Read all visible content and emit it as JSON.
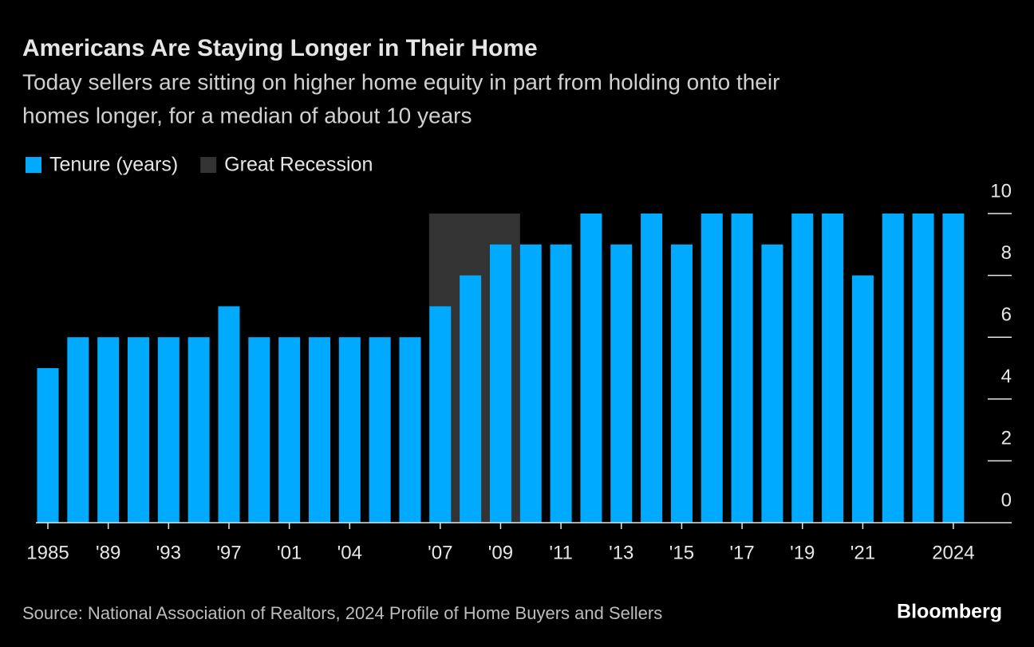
{
  "chart_data": {
    "type": "bar",
    "title": "Americans Are Staying Longer in Their Home",
    "subtitle": [
      "Today sellers are sitting on higher home equity in part from holding onto their",
      "homes longer, for a median of about 10 years"
    ],
    "categories": [
      "1985",
      null,
      "'89",
      null,
      "'93",
      null,
      "'97",
      null,
      "'01",
      null,
      "'04",
      null,
      null,
      "'07",
      null,
      "'09",
      null,
      "'11",
      null,
      "'13",
      null,
      "'15",
      null,
      "'17",
      null,
      "'19",
      null,
      "'21",
      null,
      null,
      "2024"
    ],
    "series": [
      {
        "name": "Tenure (years)",
        "color": "#00aaff",
        "values": [
          5,
          6,
          6,
          6,
          6,
          6,
          7,
          6,
          6,
          6,
          6,
          6,
          6,
          7,
          8,
          9,
          9,
          9,
          10,
          9,
          10,
          9,
          10,
          10,
          9,
          10,
          10,
          8,
          10,
          10,
          10
        ]
      },
      {
        "name": "Great Recession",
        "color": "#333333",
        "band": true,
        "values": [
          null,
          null,
          null,
          null,
          null,
          null,
          null,
          null,
          null,
          null,
          null,
          null,
          null,
          10,
          10,
          10,
          null,
          null,
          null,
          null,
          null,
          null,
          null,
          null,
          null,
          null,
          null,
          null,
          null,
          null,
          null
        ]
      }
    ],
    "ylim": [
      0,
      10
    ],
    "yticks": [
      0,
      2,
      4,
      6,
      8,
      10
    ],
    "source": "Source: National Association of Realtors, 2024 Profile of Home Buyers and Sellers",
    "brand": "Bloomberg"
  }
}
